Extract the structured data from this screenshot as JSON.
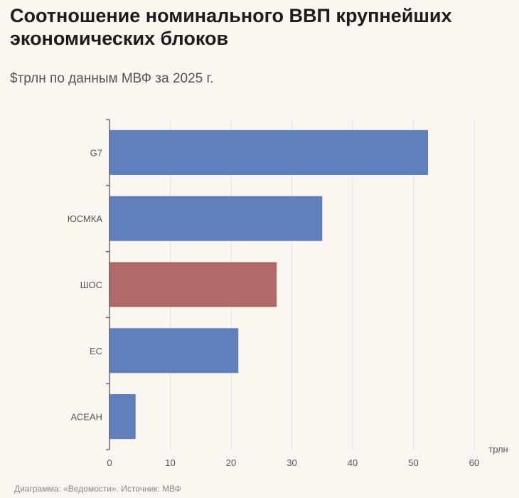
{
  "header": {
    "title": "Соотношение номинального ВВП крупнейших экономических блоков",
    "subtitle": "$трлн по данным МВФ за 2025 г."
  },
  "footer": {
    "text": "Диаграмма: «Ведомости». Источник: МВФ"
  },
  "chart_data": {
    "type": "bar",
    "orientation": "horizontal",
    "categories": [
      "G7",
      "ЮСМКА",
      "ШОС",
      "ЕС",
      "АСЕАН"
    ],
    "values": [
      52.4,
      35.0,
      27.5,
      21.2,
      4.3
    ],
    "highlighted": [
      "ШОС"
    ],
    "xlim": [
      0,
      60
    ],
    "xticks": [
      0,
      10,
      20,
      30,
      40,
      50,
      60
    ],
    "xunit": "трлн",
    "grid": true,
    "colors": {
      "bar": "#6080bb",
      "highlight": "#b06a6a",
      "grid": "#dce6ef",
      "axis": "#555555"
    }
  }
}
